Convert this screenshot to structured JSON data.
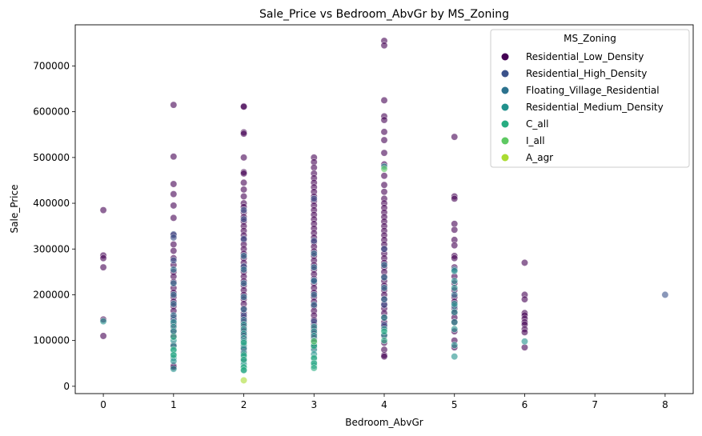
{
  "chart_data": {
    "type": "scatter",
    "title": "Sale_Price vs Bedroom_AbvGr by MS_Zoning",
    "xlabel": "Bedroom_AbvGr",
    "ylabel": "Sale_Price",
    "xlim": [
      -0.4,
      8.4
    ],
    "ylim": [
      -16000,
      790000
    ],
    "xticks": [
      0,
      1,
      2,
      3,
      4,
      5,
      6,
      7,
      8
    ],
    "yticks": [
      0,
      100000,
      200000,
      300000,
      400000,
      500000,
      600000,
      700000
    ],
    "grid": false,
    "legend": {
      "title": "MS_Zoning",
      "placement": "top-right"
    },
    "marker_opacity": 0.6,
    "series": [
      {
        "name": "Residential_Low_Density",
        "color": "#440154",
        "points": [
          [
            0,
            385000
          ],
          [
            0,
            286000
          ],
          [
            0,
            280000
          ],
          [
            0,
            260000
          ],
          [
            0,
            146000
          ],
          [
            0,
            110000
          ],
          [
            1,
            615000
          ],
          [
            1,
            502000
          ],
          [
            1,
            442000
          ],
          [
            1,
            420000
          ],
          [
            1,
            395000
          ],
          [
            1,
            368000
          ],
          [
            1,
            330000
          ],
          [
            1,
            310000
          ],
          [
            1,
            296000
          ],
          [
            1,
            280000
          ],
          [
            1,
            265000
          ],
          [
            1,
            250000
          ],
          [
            1,
            240000
          ],
          [
            1,
            228000
          ],
          [
            1,
            215000
          ],
          [
            1,
            205000
          ],
          [
            1,
            195000
          ],
          [
            1,
            185000
          ],
          [
            1,
            175000
          ],
          [
            1,
            165000
          ],
          [
            1,
            150000
          ],
          [
            1,
            135000
          ],
          [
            1,
            122000
          ],
          [
            1,
            110000
          ],
          [
            1,
            90000
          ],
          [
            1,
            45000
          ],
          [
            1,
            42000
          ],
          [
            2,
            612000
          ],
          [
            2,
            611000
          ],
          [
            2,
            555000
          ],
          [
            2,
            552000
          ],
          [
            2,
            500000
          ],
          [
            2,
            468000
          ],
          [
            2,
            465000
          ],
          [
            2,
            445000
          ],
          [
            2,
            430000
          ],
          [
            2,
            415000
          ],
          [
            2,
            400000
          ],
          [
            2,
            392000
          ],
          [
            2,
            380000
          ],
          [
            2,
            370000
          ],
          [
            2,
            360000
          ],
          [
            2,
            350000
          ],
          [
            2,
            340000
          ],
          [
            2,
            330000
          ],
          [
            2,
            320000
          ],
          [
            2,
            310000
          ],
          [
            2,
            300000
          ],
          [
            2,
            290000
          ],
          [
            2,
            280000
          ],
          [
            2,
            270000
          ],
          [
            2,
            260000
          ],
          [
            2,
            250000
          ],
          [
            2,
            240000
          ],
          [
            2,
            230000
          ],
          [
            2,
            220000
          ],
          [
            2,
            210000
          ],
          [
            2,
            200000
          ],
          [
            2,
            190000
          ],
          [
            2,
            180000
          ],
          [
            2,
            170000
          ],
          [
            2,
            160000
          ],
          [
            2,
            150000
          ],
          [
            2,
            140000
          ],
          [
            2,
            130000
          ],
          [
            2,
            120000
          ],
          [
            2,
            110000
          ],
          [
            2,
            100000
          ],
          [
            2,
            85000
          ],
          [
            2,
            75000
          ],
          [
            2,
            60000
          ],
          [
            3,
            500000
          ],
          [
            3,
            490000
          ],
          [
            3,
            478000
          ],
          [
            3,
            465000
          ],
          [
            3,
            455000
          ],
          [
            3,
            445000
          ],
          [
            3,
            435000
          ],
          [
            3,
            425000
          ],
          [
            3,
            415000
          ],
          [
            3,
            405000
          ],
          [
            3,
            395000
          ],
          [
            3,
            385000
          ],
          [
            3,
            375000
          ],
          [
            3,
            365000
          ],
          [
            3,
            355000
          ],
          [
            3,
            345000
          ],
          [
            3,
            335000
          ],
          [
            3,
            325000
          ],
          [
            3,
            315000
          ],
          [
            3,
            305000
          ],
          [
            3,
            295000
          ],
          [
            3,
            285000
          ],
          [
            3,
            275000
          ],
          [
            3,
            265000
          ],
          [
            3,
            255000
          ],
          [
            3,
            245000
          ],
          [
            3,
            235000
          ],
          [
            3,
            225000
          ],
          [
            3,
            215000
          ],
          [
            3,
            205000
          ],
          [
            3,
            195000
          ],
          [
            3,
            185000
          ],
          [
            3,
            175000
          ],
          [
            3,
            165000
          ],
          [
            3,
            155000
          ],
          [
            3,
            145000
          ],
          [
            3,
            135000
          ],
          [
            3,
            125000
          ],
          [
            3,
            115000
          ],
          [
            3,
            105000
          ],
          [
            3,
            95000
          ],
          [
            3,
            85000
          ],
          [
            4,
            755000
          ],
          [
            4,
            745000
          ],
          [
            4,
            625000
          ],
          [
            4,
            590000
          ],
          [
            4,
            582000
          ],
          [
            4,
            556000
          ],
          [
            4,
            538000
          ],
          [
            4,
            510000
          ],
          [
            4,
            485000
          ],
          [
            4,
            460000
          ],
          [
            4,
            440000
          ],
          [
            4,
            425000
          ],
          [
            4,
            410000
          ],
          [
            4,
            400000
          ],
          [
            4,
            390000
          ],
          [
            4,
            380000
          ],
          [
            4,
            370000
          ],
          [
            4,
            360000
          ],
          [
            4,
            350000
          ],
          [
            4,
            340000
          ],
          [
            4,
            330000
          ],
          [
            4,
            320000
          ],
          [
            4,
            310000
          ],
          [
            4,
            300000
          ],
          [
            4,
            290000
          ],
          [
            4,
            280000
          ],
          [
            4,
            270000
          ],
          [
            4,
            260000
          ],
          [
            4,
            250000
          ],
          [
            4,
            240000
          ],
          [
            4,
            230000
          ],
          [
            4,
            220000
          ],
          [
            4,
            210000
          ],
          [
            4,
            200000
          ],
          [
            4,
            190000
          ],
          [
            4,
            180000
          ],
          [
            4,
            170000
          ],
          [
            4,
            160000
          ],
          [
            4,
            150000
          ],
          [
            4,
            140000
          ],
          [
            4,
            130000
          ],
          [
            4,
            110000
          ],
          [
            4,
            95000
          ],
          [
            4,
            80000
          ],
          [
            4,
            68000
          ],
          [
            4,
            65000
          ],
          [
            5,
            545000
          ],
          [
            5,
            415000
          ],
          [
            5,
            410000
          ],
          [
            5,
            355000
          ],
          [
            5,
            342000
          ],
          [
            5,
            320000
          ],
          [
            5,
            308000
          ],
          [
            5,
            285000
          ],
          [
            5,
            280000
          ],
          [
            5,
            260000
          ],
          [
            5,
            240000
          ],
          [
            5,
            225000
          ],
          [
            5,
            210000
          ],
          [
            5,
            195000
          ],
          [
            5,
            185000
          ],
          [
            5,
            170000
          ],
          [
            5,
            160000
          ],
          [
            5,
            150000
          ],
          [
            5,
            140000
          ],
          [
            5,
            120000
          ],
          [
            5,
            100000
          ],
          [
            5,
            85000
          ],
          [
            6,
            270000
          ],
          [
            6,
            200000
          ],
          [
            6,
            190000
          ],
          [
            6,
            160000
          ],
          [
            6,
            155000
          ],
          [
            6,
            148000
          ],
          [
            6,
            140000
          ],
          [
            6,
            135000
          ],
          [
            6,
            125000
          ],
          [
            6,
            118000
          ],
          [
            6,
            85000
          ]
        ]
      },
      {
        "name": "Residential_High_Density",
        "color": "#3b528b",
        "points": [
          [
            1,
            332000
          ],
          [
            1,
            325000
          ],
          [
            1,
            275000
          ],
          [
            1,
            145000
          ],
          [
            2,
            385000
          ],
          [
            2,
            365000
          ],
          [
            2,
            322000
          ],
          [
            2,
            262000
          ],
          [
            2,
            155000
          ],
          [
            3,
            410000
          ],
          [
            3,
            318000
          ],
          [
            3,
            232000
          ],
          [
            3,
            142000
          ],
          [
            4,
            300000
          ],
          [
            4,
            178000
          ],
          [
            4,
            134000
          ],
          [
            8,
            200000
          ]
        ]
      },
      {
        "name": "Floating_Village_Residential",
        "color": "#2c728e",
        "points": [
          [
            1,
            255000
          ],
          [
            1,
            225000
          ],
          [
            1,
            200000
          ],
          [
            1,
            180000
          ],
          [
            1,
            155000
          ],
          [
            2,
            285000
          ],
          [
            2,
            255000
          ],
          [
            2,
            225000
          ],
          [
            2,
            195000
          ],
          [
            2,
            168000
          ],
          [
            2,
            145000
          ],
          [
            3,
            290000
          ],
          [
            3,
            260000
          ],
          [
            3,
            230000
          ],
          [
            3,
            200000
          ],
          [
            3,
            178000
          ],
          [
            4,
            265000
          ],
          [
            4,
            238000
          ],
          [
            4,
            215000
          ],
          [
            4,
            190000
          ],
          [
            5,
            255000
          ],
          [
            5,
            200000
          ],
          [
            5,
            175000
          ]
        ]
      },
      {
        "name": "Residential_Medium_Density",
        "color": "#21918c",
        "points": [
          [
            0,
            142000
          ],
          [
            1,
            140000
          ],
          [
            1,
            130000
          ],
          [
            1,
            120000
          ],
          [
            1,
            100000
          ],
          [
            1,
            88000
          ],
          [
            1,
            78000
          ],
          [
            1,
            70000
          ],
          [
            1,
            62000
          ],
          [
            1,
            55000
          ],
          [
            1,
            38000
          ],
          [
            2,
            135000
          ],
          [
            2,
            125000
          ],
          [
            2,
            115000
          ],
          [
            2,
            105000
          ],
          [
            2,
            98000
          ],
          [
            2,
            90000
          ],
          [
            2,
            82000
          ],
          [
            2,
            72000
          ],
          [
            2,
            65000
          ],
          [
            2,
            55000
          ],
          [
            2,
            48000
          ],
          [
            2,
            40000
          ],
          [
            2,
            36000
          ],
          [
            3,
            130000
          ],
          [
            3,
            120000
          ],
          [
            3,
            110000
          ],
          [
            3,
            100000
          ],
          [
            3,
            90000
          ],
          [
            3,
            80000
          ],
          [
            3,
            70000
          ],
          [
            3,
            60000
          ],
          [
            3,
            52000
          ],
          [
            3,
            45000
          ],
          [
            4,
            480000
          ],
          [
            4,
            150000
          ],
          [
            4,
            125000
          ],
          [
            4,
            112000
          ],
          [
            5,
            252000
          ],
          [
            5,
            230000
          ],
          [
            5,
            215000
          ],
          [
            5,
            180000
          ],
          [
            5,
            162000
          ],
          [
            5,
            140000
          ],
          [
            5,
            125000
          ],
          [
            5,
            90000
          ],
          [
            5,
            65000
          ],
          [
            6,
            98000
          ]
        ]
      },
      {
        "name": "C_all",
        "color": "#27ad81",
        "points": [
          [
            1,
            108000
          ],
          [
            1,
            80000
          ],
          [
            1,
            68000
          ],
          [
            2,
            95000
          ],
          [
            2,
            68000
          ],
          [
            2,
            58000
          ],
          [
            2,
            42000
          ],
          [
            2,
            35000
          ],
          [
            3,
            88000
          ],
          [
            3,
            62000
          ],
          [
            3,
            50000
          ],
          [
            3,
            40000
          ],
          [
            4,
            120000
          ],
          [
            4,
            100000
          ]
        ]
      },
      {
        "name": "I_all",
        "color": "#5ec962",
        "points": [
          [
            4,
            475000
          ],
          [
            3,
            98000
          ]
        ]
      },
      {
        "name": "A_agr",
        "color": "#aadc32",
        "points": [
          [
            2,
            13000
          ]
        ]
      }
    ]
  }
}
